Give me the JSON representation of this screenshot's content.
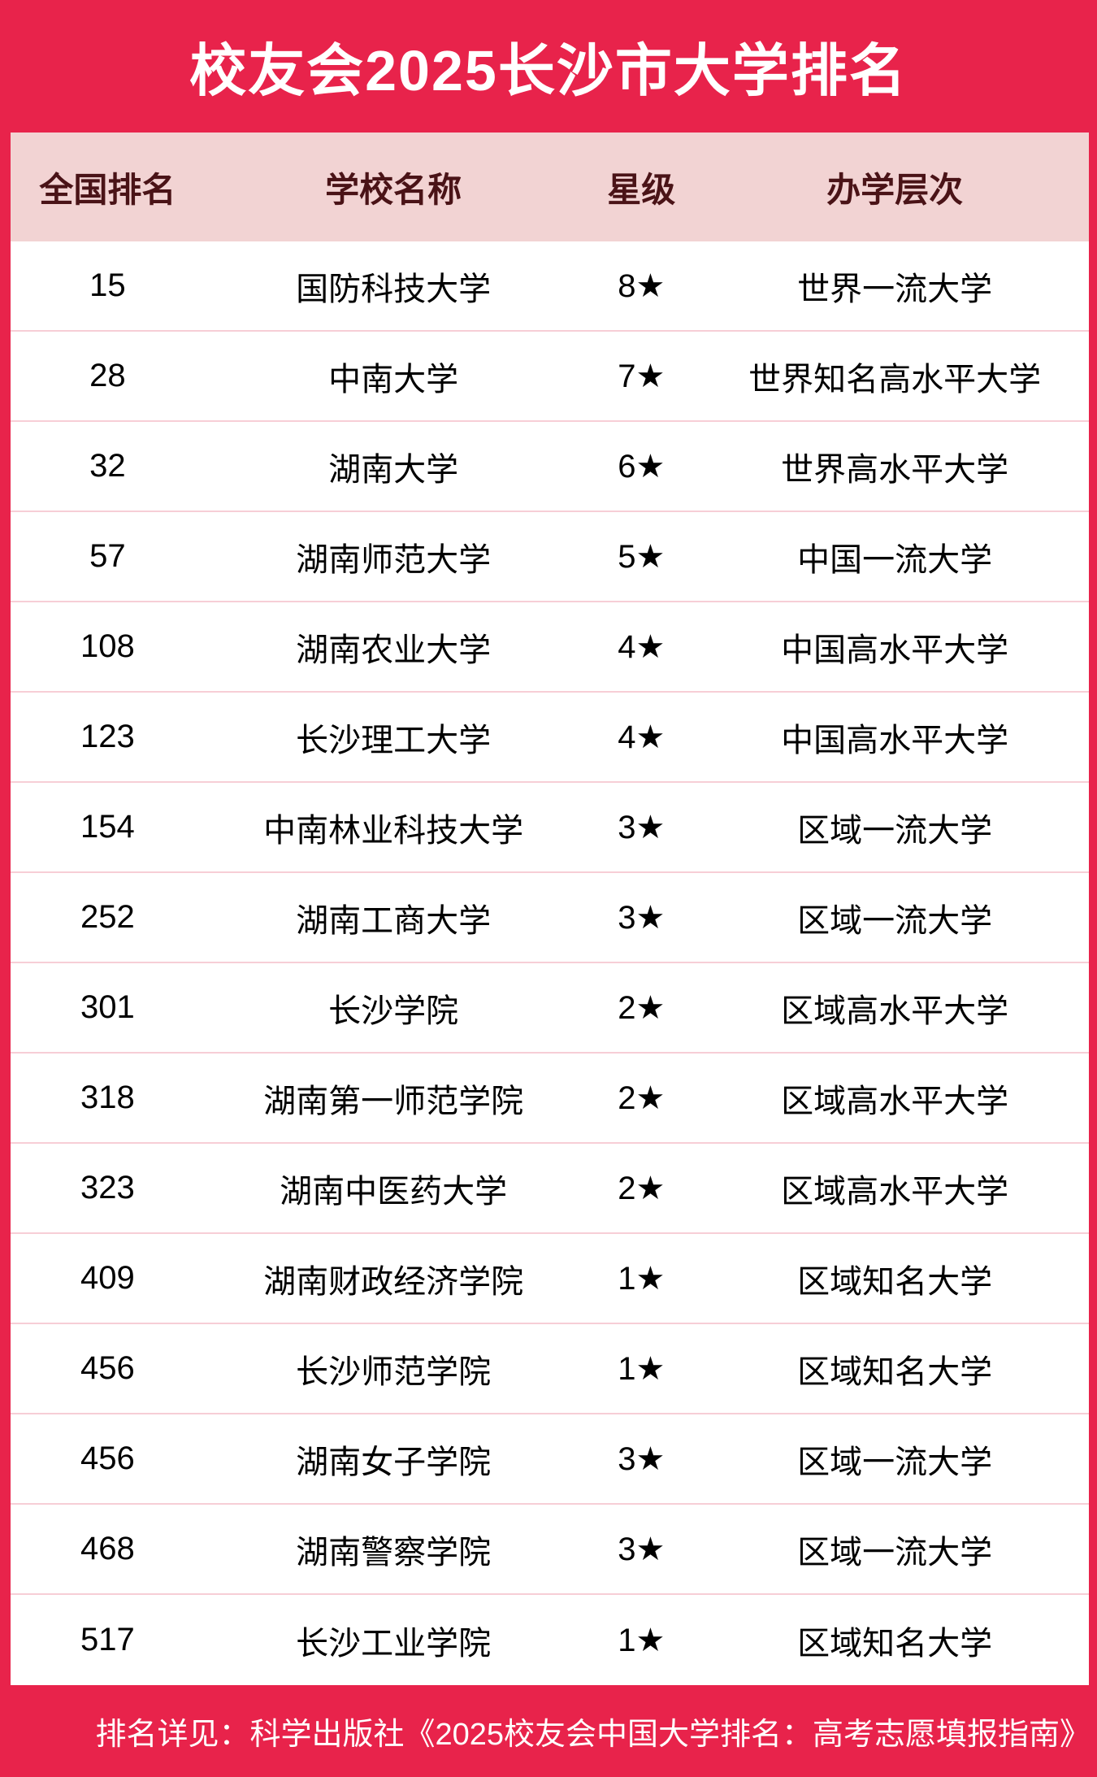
{
  "chart_data": {
    "type": "table",
    "title": "校友会2025长沙市大学排名",
    "columns": [
      "全国排名",
      "学校名称",
      "星级",
      "办学层次"
    ],
    "rows": [
      [
        "15",
        "国防科技大学",
        "8★",
        "世界一流大学"
      ],
      [
        "28",
        "中南大学",
        "7★",
        "世界知名高水平大学"
      ],
      [
        "32",
        "湖南大学",
        "6★",
        "世界高水平大学"
      ],
      [
        "57",
        "湖南师范大学",
        "5★",
        "中国一流大学"
      ],
      [
        "108",
        "湖南农业大学",
        "4★",
        "中国高水平大学"
      ],
      [
        "123",
        "长沙理工大学",
        "4★",
        "中国高水平大学"
      ],
      [
        "154",
        "中南林业科技大学",
        "3★",
        "区域一流大学"
      ],
      [
        "252",
        "湖南工商大学",
        "3★",
        "区域一流大学"
      ],
      [
        "301",
        "长沙学院",
        "2★",
        "区域高水平大学"
      ],
      [
        "318",
        "湖南第一师范学院",
        "2★",
        "区域高水平大学"
      ],
      [
        "323",
        "湖南中医药大学",
        "2★",
        "区域高水平大学"
      ],
      [
        "409",
        "湖南财政经济学院",
        "1★",
        "区域知名大学"
      ],
      [
        "456",
        "长沙师范学院",
        "1★",
        "区域知名大学"
      ],
      [
        "456",
        "湖南女子学院",
        "3★",
        "区域一流大学"
      ],
      [
        "468",
        "湖南警察学院",
        "3★",
        "区域一流大学"
      ],
      [
        "517",
        "长沙工业学院",
        "1★",
        "区域知名大学"
      ]
    ],
    "layout": "header-band-top, pink column header row, 16 white data rows, red footer band"
  },
  "footer": {
    "note": "排名详见：科学出版社《2025校友会中国大学排名：高考志愿填报指南》"
  },
  "colors": {
    "accent_red": "#e8234b",
    "header_pink": "#f2d3d3",
    "header_text_maroon": "#4a1317",
    "row_separator_pink": "#f7ced6",
    "body_text": "#000000",
    "title_text": "#ffffff"
  }
}
